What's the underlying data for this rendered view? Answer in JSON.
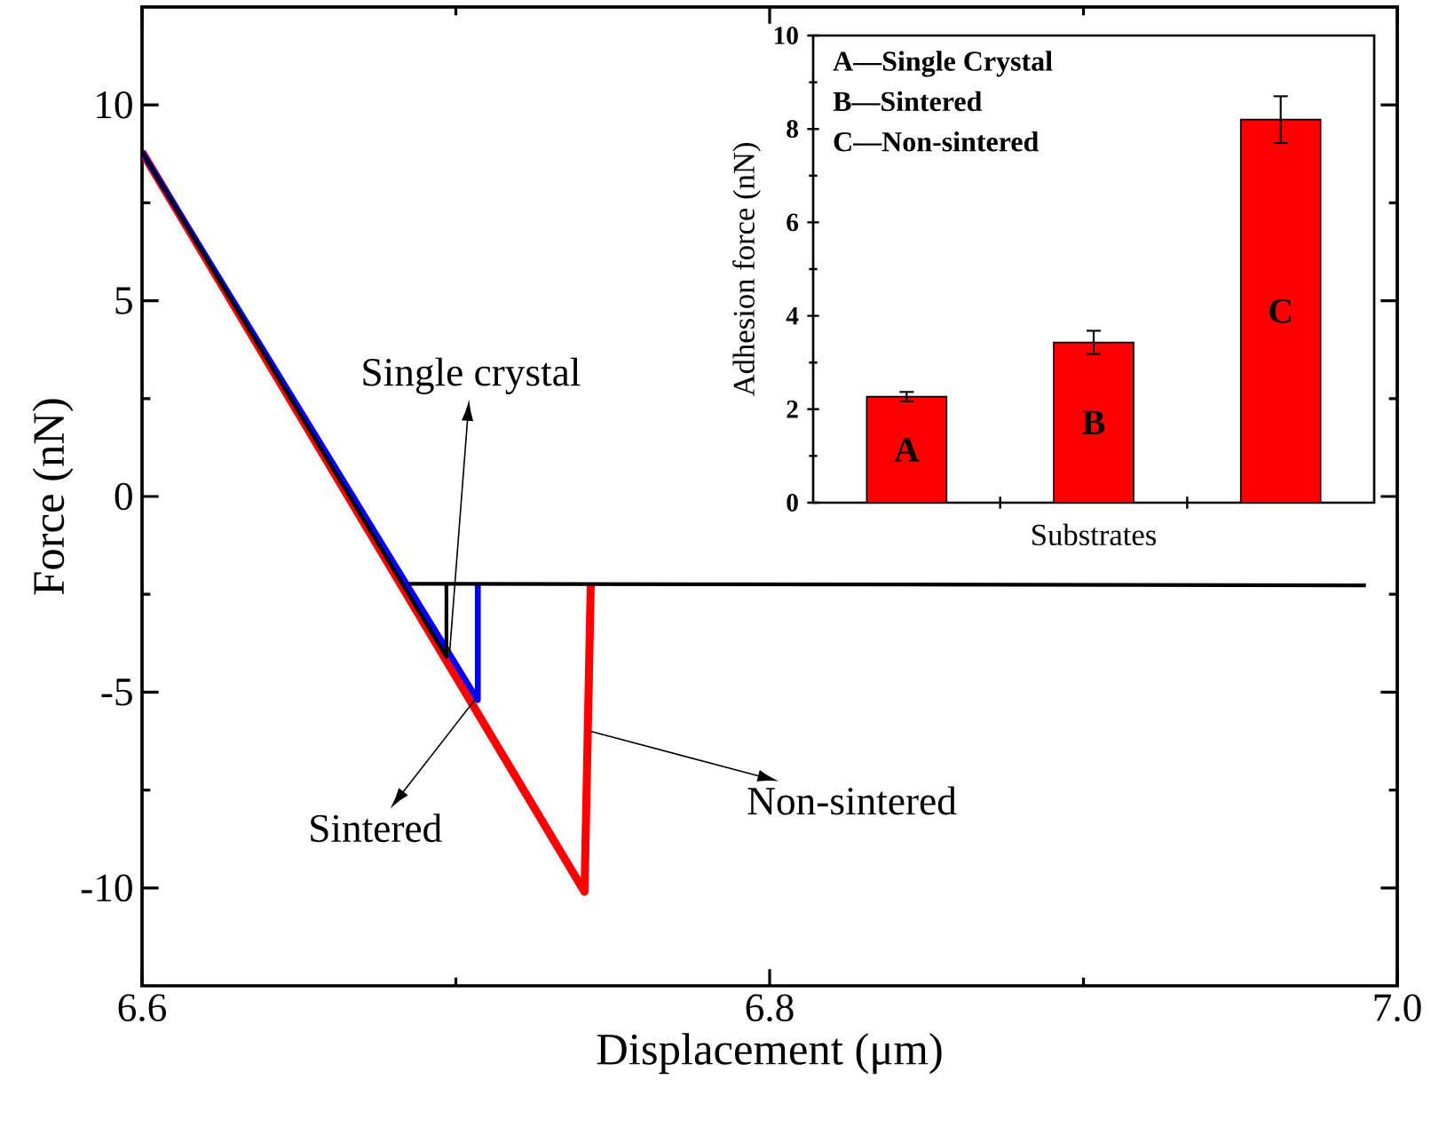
{
  "chart_data": [
    {
      "type": "line",
      "xlabel": "Displacement (μm)",
      "ylabel": "Force (nN)",
      "xlim": [
        6.6,
        7.0
      ],
      "ylim": [
        -12.5,
        12.5
      ],
      "xticks": [
        {
          "value": 6.6,
          "label": "6.6"
        },
        {
          "value": 6.7,
          "label": null
        },
        {
          "value": 6.8,
          "label": "6.8"
        },
        {
          "value": 6.9,
          "label": null
        },
        {
          "value": 7.0,
          "label": "7.0"
        }
      ],
      "yticks": [
        -10,
        {
          "value": -7.5,
          "label": null
        },
        -5,
        {
          "value": -2.5,
          "label": null
        },
        0,
        {
          "value": 2.5,
          "label": null
        },
        5,
        {
          "value": 7.5,
          "label": null
        },
        10
      ],
      "series": [
        {
          "color": "#ff0000",
          "x": [
            6.6,
            6.741,
            6.743
          ],
          "values": [
            8.8,
            -10.1,
            -2.23
          ]
        },
        {
          "color": "#0000ff",
          "x": [
            6.6,
            6.707,
            6.707
          ],
          "values": [
            8.8,
            -5.2,
            -2.23
          ]
        },
        {
          "color": "#000000",
          "x": [
            6.6,
            6.697,
            6.697,
            6.69,
            6.685,
            6.99
          ],
          "values": [
            8.8,
            -4.1,
            -2.23,
            null,
            -2.23,
            -2.27
          ]
        }
      ],
      "annotations": [
        {
          "text": "Single crystal",
          "x": 6.698,
          "y": -4.0
        },
        {
          "text": "Sintered",
          "x": 6.706,
          "y": -5.2
        },
        {
          "text": "Non-sintered",
          "x": 6.743,
          "y": -6.0
        }
      ]
    },
    {
      "type": "bar",
      "xlabel": "Substrates",
      "ylabel": "Adhesion force (nN)",
      "color": "#ff0000",
      "categories": [
        "A",
        "B",
        "C"
      ],
      "values": [
        2.27,
        3.43,
        8.2
      ],
      "errors": [
        0.1,
        0.25,
        0.5
      ],
      "ylim": [
        0,
        10
      ],
      "yticks": [
        0,
        {
          "value": 1,
          "label": null
        },
        2,
        {
          "value": 3,
          "label": null
        },
        4,
        {
          "value": 5,
          "label": null
        },
        6,
        {
          "value": 7,
          "label": null
        },
        8,
        {
          "value": 9,
          "label": null
        },
        10
      ],
      "annotations": [
        "A—Single Crystal",
        "B—Sintered",
        "C—Non-sintered"
      ]
    }
  ]
}
